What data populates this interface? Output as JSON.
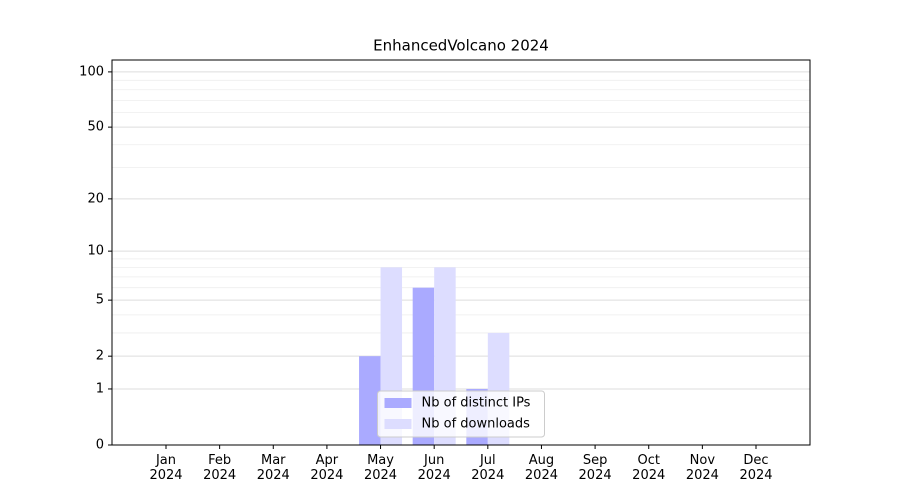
{
  "chart_data": {
    "type": "bar",
    "title": "EnhancedVolcano 2024",
    "categories": [
      "Jan 2024",
      "Feb 2024",
      "Mar 2024",
      "Apr 2024",
      "May 2024",
      "Jun 2024",
      "Jul 2024",
      "Aug 2024",
      "Sep 2024",
      "Oct 2024",
      "Nov 2024",
      "Dec 2024"
    ],
    "series": [
      {
        "name": "Nb of distinct IPs",
        "color": "#aaaaff",
        "values": [
          0,
          0,
          0,
          0,
          2,
          6,
          1,
          0,
          0,
          0,
          0,
          0
        ]
      },
      {
        "name": "Nb of downloads",
        "color": "#ddddff",
        "values": [
          0,
          0,
          0,
          0,
          8,
          8,
          3,
          0,
          0,
          0,
          0,
          0
        ]
      }
    ],
    "yscale": "log1p",
    "ylim": [
      0,
      116
    ],
    "yticks": [
      0,
      1,
      2,
      5,
      10,
      20,
      50,
      100
    ],
    "yminorticks": [
      3,
      4,
      6,
      7,
      8,
      9,
      30,
      40,
      60,
      70,
      80,
      90
    ],
    "grid": true,
    "legend": "lower center"
  }
}
